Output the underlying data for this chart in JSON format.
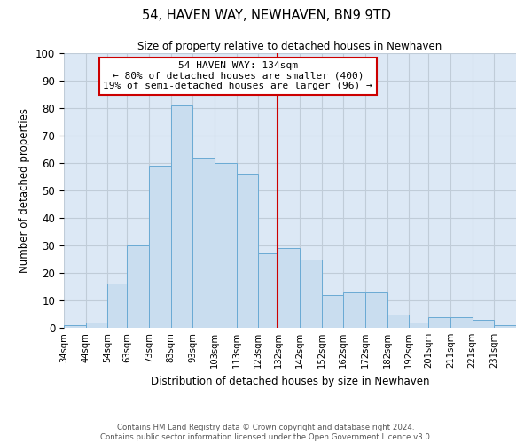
{
  "title": "54, HAVEN WAY, NEWHAVEN, BN9 9TD",
  "subtitle": "Size of property relative to detached houses in Newhaven",
  "xlabel": "Distribution of detached houses by size in Newhaven",
  "ylabel": "Number of detached properties",
  "bar_labels": [
    "34sqm",
    "44sqm",
    "54sqm",
    "63sqm",
    "73sqm",
    "83sqm",
    "93sqm",
    "103sqm",
    "113sqm",
    "123sqm",
    "132sqm",
    "142sqm",
    "152sqm",
    "162sqm",
    "172sqm",
    "182sqm",
    "192sqm",
    "201sqm",
    "211sqm",
    "221sqm",
    "231sqm"
  ],
  "bar_values": [
    1,
    2,
    16,
    30,
    59,
    81,
    62,
    60,
    56,
    27,
    29,
    25,
    12,
    13,
    13,
    5,
    2,
    4,
    4,
    3,
    1
  ],
  "bar_color": "#c9ddef",
  "bar_edge_color": "#6aaad4",
  "vline_x_index": 10,
  "vline_color": "#cc0000",
  "annotation_title": "54 HAVEN WAY: 134sqm",
  "annotation_line1": "← 80% of detached houses are smaller (400)",
  "annotation_line2": "19% of semi-detached houses are larger (96) →",
  "annotation_box_color": "#cc0000",
  "annotation_bg": "#ffffff",
  "ylim": [
    0,
    100
  ],
  "yticks": [
    0,
    10,
    20,
    30,
    40,
    50,
    60,
    70,
    80,
    90,
    100
  ],
  "grid_color": "#c0ccd8",
  "facecolor": "#dce8f5",
  "footnote1": "Contains HM Land Registry data © Crown copyright and database right 2024.",
  "footnote2": "Contains public sector information licensed under the Open Government Licence v3.0.",
  "bin_edges": [
    34,
    44,
    54,
    63,
    73,
    83,
    93,
    103,
    113,
    123,
    132,
    142,
    152,
    162,
    172,
    182,
    192,
    201,
    211,
    221,
    231,
    241
  ]
}
